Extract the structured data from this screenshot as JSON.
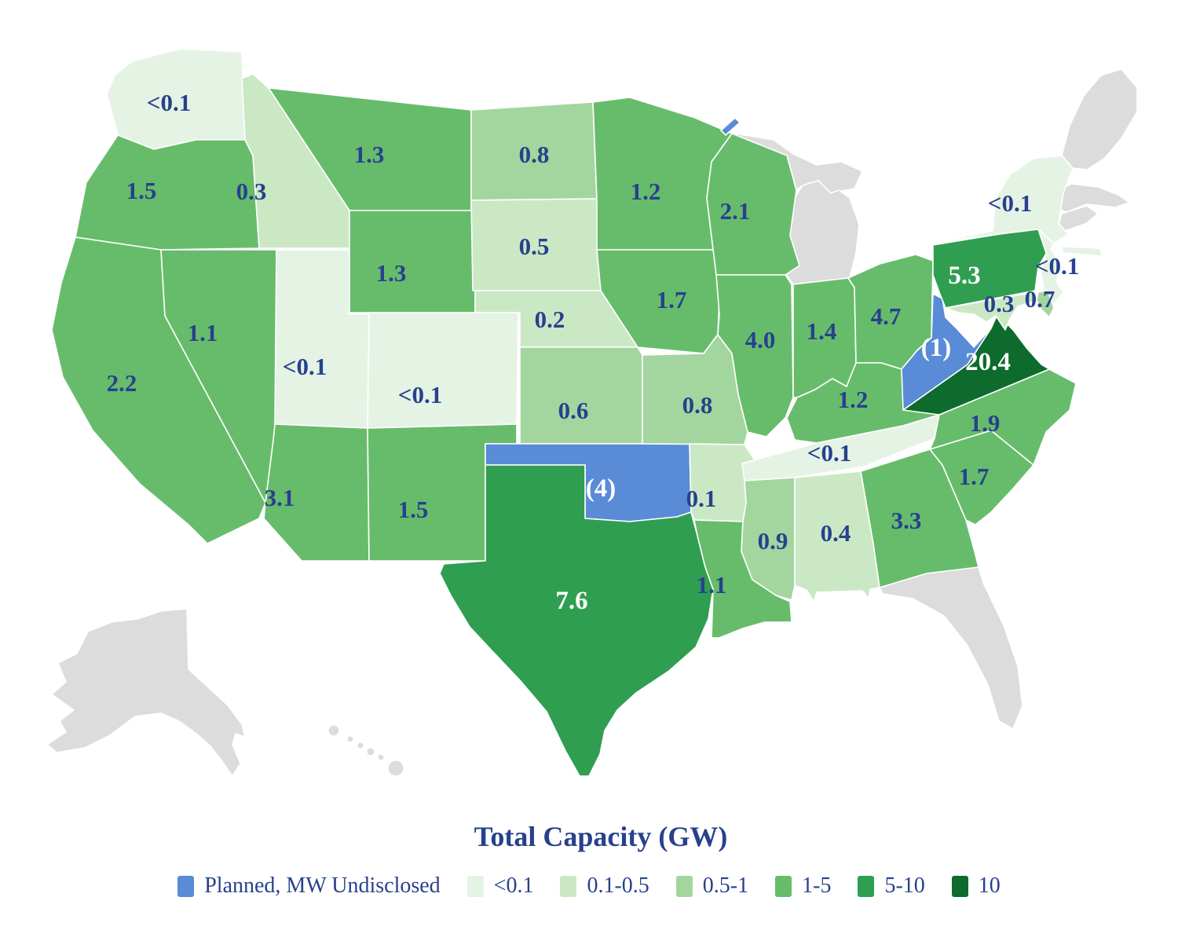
{
  "title": "Total Capacity (GW)",
  "legend": {
    "planned": {
      "label": "Planned, MW Undisclosed",
      "color": "#5A8BD6"
    },
    "bands": [
      {
        "key": "lt01",
        "label": "<0.1",
        "color": "#E5F3E4"
      },
      {
        "key": "b01_05",
        "label": "0.1-0.5",
        "color": "#CBE8C5"
      },
      {
        "key": "b05_1",
        "label": "0.5-1",
        "color": "#A3D69E"
      },
      {
        "key": "b1_5",
        "label": "1-5",
        "color": "#67BC6B"
      },
      {
        "key": "b5_10",
        "label": "5-10",
        "color": "#2F9E50"
      },
      {
        "key": "b10",
        "label": "10",
        "color": "#0C6B2D"
      }
    ],
    "no_data_color": "#DCDCDC",
    "label_color": "#27418D",
    "value_text_color_on_dark": "#FFFFFF"
  },
  "chart_data": {
    "type": "choropleth",
    "title": "Total Capacity (GW)",
    "unit": "GW",
    "states": [
      {
        "id": "WA",
        "name": "Washington",
        "label": "<0.1",
        "band": "lt01"
      },
      {
        "id": "OR",
        "name": "Oregon",
        "label": "1.5",
        "band": "b1_5"
      },
      {
        "id": "CA",
        "name": "California",
        "label": "2.2",
        "band": "b1_5"
      },
      {
        "id": "NV",
        "name": "Nevada",
        "label": "1.1",
        "band": "b1_5"
      },
      {
        "id": "ID",
        "name": "Idaho",
        "label": "0.3",
        "band": "b01_05"
      },
      {
        "id": "MT",
        "name": "Montana",
        "label": "1.3",
        "band": "b1_5"
      },
      {
        "id": "WY",
        "name": "Wyoming",
        "label": "1.3",
        "band": "b1_5"
      },
      {
        "id": "UT",
        "name": "Utah",
        "label": "<0.1",
        "band": "lt01"
      },
      {
        "id": "CO",
        "name": "Colorado",
        "label": "<0.1",
        "band": "lt01"
      },
      {
        "id": "AZ",
        "name": "Arizona",
        "label": "3.1",
        "band": "b1_5"
      },
      {
        "id": "NM",
        "name": "New Mexico",
        "label": "1.5",
        "band": "b1_5"
      },
      {
        "id": "ND",
        "name": "North Dakota",
        "label": "0.8",
        "band": "b05_1"
      },
      {
        "id": "SD",
        "name": "South Dakota",
        "label": "0.5",
        "band": "b01_05"
      },
      {
        "id": "NE",
        "name": "Nebraska",
        "label": "0.2",
        "band": "b01_05"
      },
      {
        "id": "KS",
        "name": "Kansas",
        "label": "0.6",
        "band": "b05_1"
      },
      {
        "id": "OK",
        "name": "Oklahoma",
        "label": "(4)",
        "band": "planned"
      },
      {
        "id": "TX",
        "name": "Texas",
        "label": "7.6",
        "band": "b5_10"
      },
      {
        "id": "MN",
        "name": "Minnesota",
        "label": "1.2",
        "band": "b1_5"
      },
      {
        "id": "IA",
        "name": "Iowa",
        "label": "1.7",
        "band": "b1_5"
      },
      {
        "id": "MO",
        "name": "Missouri",
        "label": "0.8",
        "band": "b05_1"
      },
      {
        "id": "AR",
        "name": "Arkansas",
        "label": "0.1",
        "band": "b01_05"
      },
      {
        "id": "LA",
        "name": "Louisiana",
        "label": "1.1",
        "band": "b1_5"
      },
      {
        "id": "WI",
        "name": "Wisconsin",
        "label": "2.1",
        "band": "b1_5"
      },
      {
        "id": "IL",
        "name": "Illinois",
        "label": "4.0",
        "band": "b1_5"
      },
      {
        "id": "IN",
        "name": "Indiana",
        "label": "1.4",
        "band": "b1_5"
      },
      {
        "id": "OH",
        "name": "Ohio",
        "label": "4.7",
        "band": "b1_5"
      },
      {
        "id": "KY",
        "name": "Kentucky",
        "label": "1.2",
        "band": "b1_5"
      },
      {
        "id": "TN",
        "name": "Tennessee",
        "label": "<0.1",
        "band": "lt01"
      },
      {
        "id": "MS",
        "name": "Mississippi",
        "label": "0.9",
        "band": "b05_1"
      },
      {
        "id": "AL",
        "name": "Alabama",
        "label": "0.4",
        "band": "b01_05"
      },
      {
        "id": "GA",
        "name": "Georgia",
        "label": "3.3",
        "band": "b1_5"
      },
      {
        "id": "SC",
        "name": "South Carolina",
        "label": "1.7",
        "band": "b1_5"
      },
      {
        "id": "NC",
        "name": "North Carolina",
        "label": "1.9",
        "band": "b1_5"
      },
      {
        "id": "VA",
        "name": "Virginia",
        "label": "20.4",
        "band": "b10"
      },
      {
        "id": "WV",
        "name": "West Virginia",
        "label": "(1)",
        "band": "planned"
      },
      {
        "id": "PA",
        "name": "Pennsylvania",
        "label": "5.3",
        "band": "b5_10"
      },
      {
        "id": "NY",
        "name": "New York",
        "label": "<0.1",
        "band": "lt01"
      },
      {
        "id": "NJ",
        "name": "New Jersey",
        "label": "<0.1",
        "band": "lt01"
      },
      {
        "id": "MD",
        "name": "Maryland",
        "label": "0.3",
        "band": "b01_05"
      },
      {
        "id": "DE",
        "name": "Delaware",
        "label": "0.7",
        "band": "b05_1"
      }
    ],
    "no_data_states": [
      "MI",
      "FL",
      "AK",
      "HI",
      "ME",
      "VT",
      "NH",
      "MA",
      "CT",
      "RI"
    ]
  }
}
